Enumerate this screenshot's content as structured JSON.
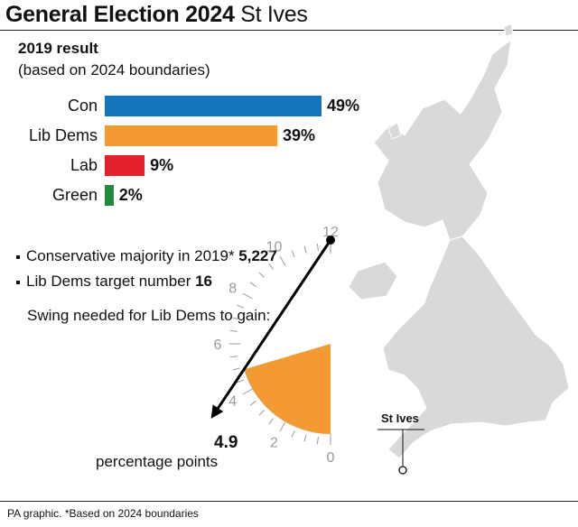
{
  "header": {
    "title_bold": "General Election 2024",
    "title_place": "St Ives"
  },
  "chart_data": {
    "type": "bar",
    "title": "2019 result",
    "subtitle": "(based on 2024 boundaries)",
    "categories": [
      "Con",
      "Lib Dems",
      "Lab",
      "Green"
    ],
    "values": [
      49,
      39,
      9,
      2
    ],
    "value_labels": [
      "49%",
      "39%",
      "9%",
      "2%"
    ],
    "colors": [
      "#1375bc",
      "#f39a32",
      "#e3212b",
      "#1e8c3a"
    ],
    "orientation": "horizontal",
    "grid": false
  },
  "facts": [
    {
      "text": "Conservative majority in 2019*",
      "value": "5,227"
    },
    {
      "text": "Lib Dems target number",
      "value": "16"
    }
  ],
  "swing": {
    "title": "Swing needed for Lib Dems to gain:",
    "value": 4.9,
    "value_label": "4.9",
    "unit": "percentage points",
    "scale_max": 12,
    "ticks": [
      "12",
      "10",
      "8",
      "6",
      "4",
      "2",
      "0"
    ],
    "fill_color": "#f39a32"
  },
  "map": {
    "location_label": "St Ives"
  },
  "footer": {
    "source": "PA graphic. *Based on 2024 boundaries"
  }
}
